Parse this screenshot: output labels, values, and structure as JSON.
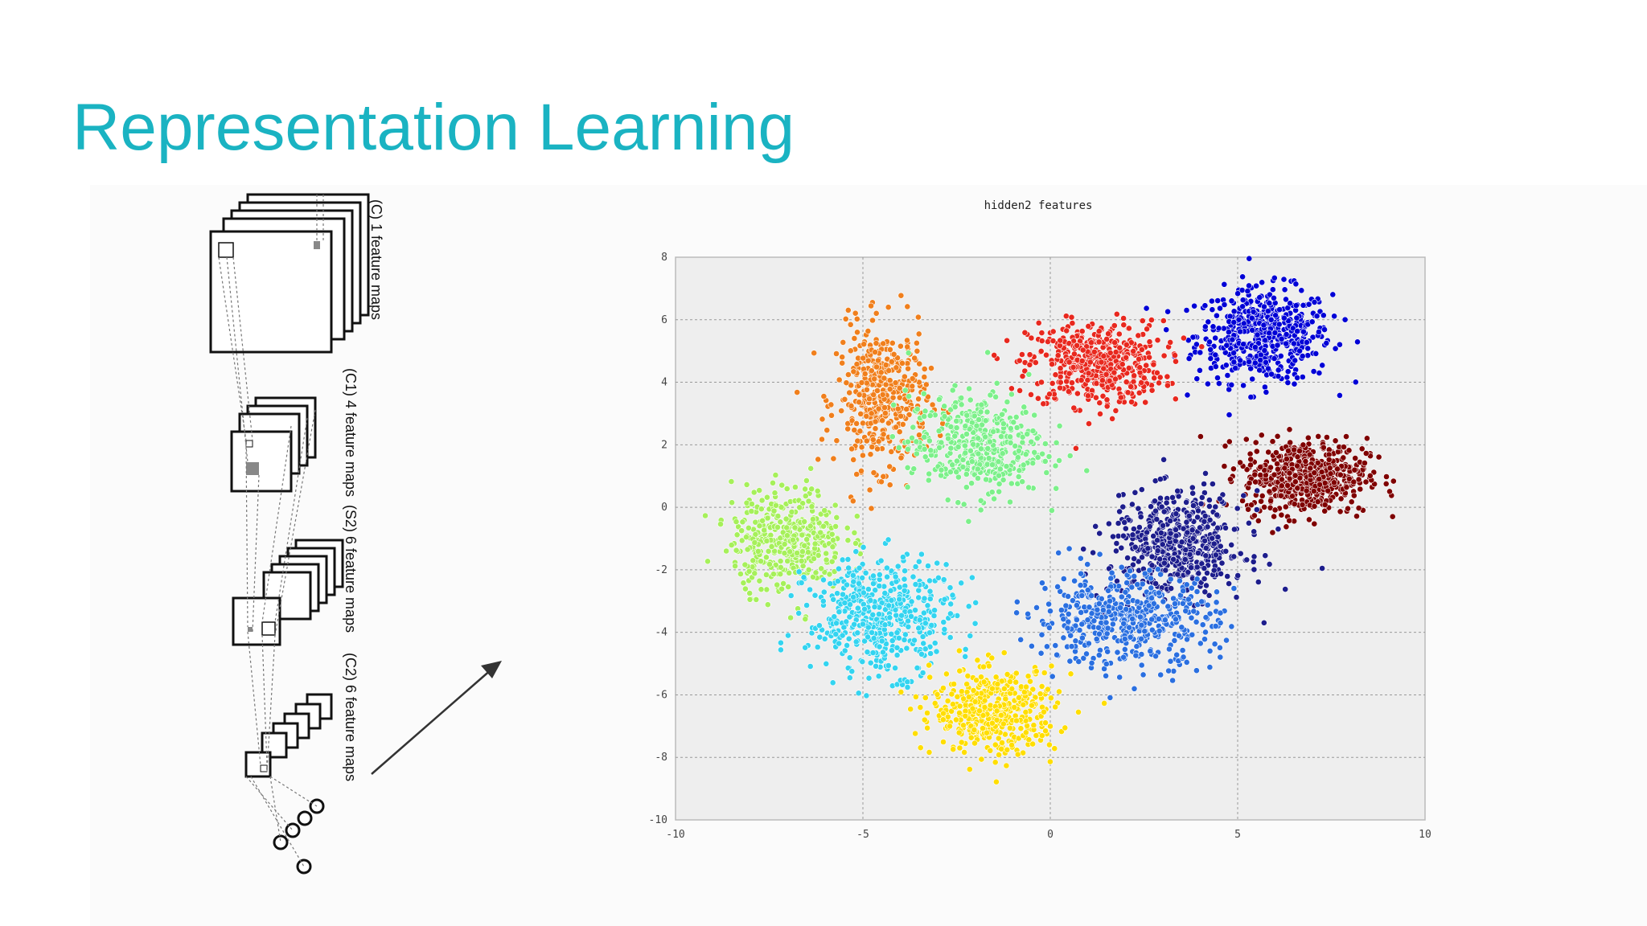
{
  "slide": {
    "title": "Representation Learning",
    "title_color": "#1ab3c2"
  },
  "network": {
    "layers": [
      {
        "label": "(C) 1 feature maps"
      },
      {
        "label": "(C1) 4 feature maps"
      },
      {
        "label": "(S2) 6 feature maps"
      },
      {
        "label": "(C2) 6 feature maps"
      }
    ],
    "arrow_icon": "arrow-right-up-icon"
  },
  "chart_data": {
    "type": "scatter",
    "title": "hidden2 features",
    "xlim": [
      -10,
      10
    ],
    "ylim": [
      -10,
      8
    ],
    "xticks": [
      "-10",
      "-5",
      "0",
      "5",
      "10"
    ],
    "yticks": [
      "8",
      "6",
      "4",
      "2",
      "0",
      "-2",
      "-4",
      "-6",
      "-8",
      "-10"
    ],
    "grid": true,
    "plot_background": "#eeeeee",
    "clusters": [
      {
        "color": "#0000d6",
        "center": [
          5.7,
          5.5
        ],
        "spread": [
          1.2,
          1.0
        ],
        "count": 520
      },
      {
        "color": "#e8281e",
        "center": [
          1.2,
          4.6
        ],
        "spread": [
          1.2,
          0.9
        ],
        "count": 480
      },
      {
        "color": "#f07f1c",
        "center": [
          -4.5,
          3.5
        ],
        "spread": [
          0.8,
          1.5
        ],
        "count": 420
      },
      {
        "color": "#7f0000",
        "center": [
          6.8,
          1.0
        ],
        "spread": [
          1.1,
          0.8
        ],
        "count": 560
      },
      {
        "color": "#7cf08a",
        "center": [
          -2.0,
          2.0
        ],
        "spread": [
          1.2,
          1.1
        ],
        "count": 420
      },
      {
        "color": "#a6f05a",
        "center": [
          -7.0,
          -1.0
        ],
        "spread": [
          1.0,
          1.1
        ],
        "count": 400
      },
      {
        "color": "#1d1d8c",
        "center": [
          3.4,
          -1.2
        ],
        "spread": [
          1.2,
          1.1
        ],
        "count": 520
      },
      {
        "color": "#33d4f0",
        "center": [
          -4.5,
          -3.5
        ],
        "spread": [
          1.3,
          1.2
        ],
        "count": 480
      },
      {
        "color": "#2a6fe0",
        "center": [
          2.0,
          -3.6
        ],
        "spread": [
          1.6,
          1.0
        ],
        "count": 500
      },
      {
        "color": "#ffde00",
        "center": [
          -1.5,
          -6.5
        ],
        "spread": [
          1.1,
          0.9
        ],
        "count": 460
      }
    ]
  }
}
